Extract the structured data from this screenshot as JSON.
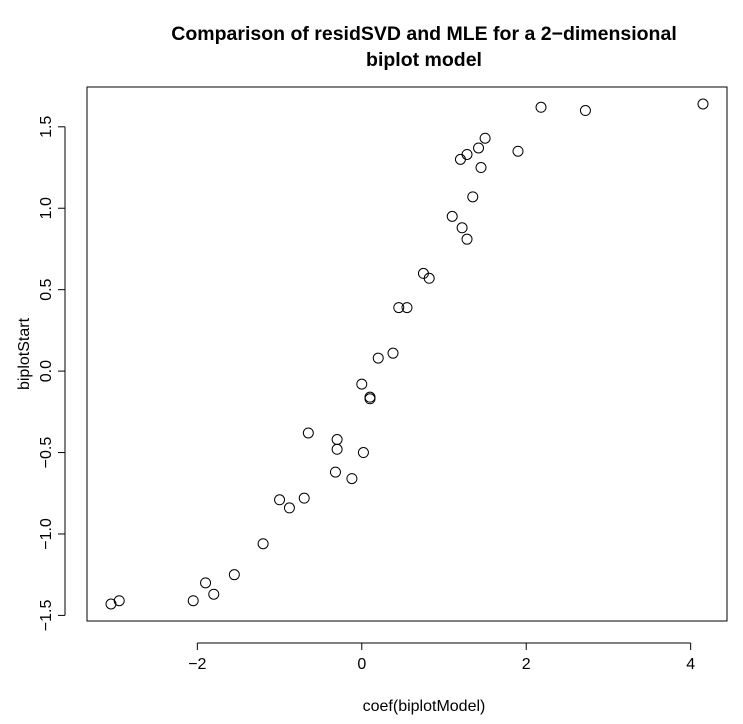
{
  "chart_data": {
    "type": "scatter",
    "title": "Comparison of residSVD and MLE for a 2−dimensional biplot model",
    "title_lines": [
      "Comparison of residSVD and MLE for a 2−dimensional",
      "biplot model"
    ],
    "xlabel": "coef(biplotModel)",
    "ylabel": "biplotStart",
    "xlim": [
      -3.05,
      4.15
    ],
    "ylim": [
      -1.43,
      1.64
    ],
    "x_ticks": [
      -2,
      0,
      2,
      4
    ],
    "x_tick_labels": [
      "−2",
      "0",
      "2",
      "4"
    ],
    "y_ticks": [
      -1.5,
      -1.0,
      -0.5,
      0.0,
      0.5,
      1.0,
      1.5
    ],
    "y_tick_labels": [
      "−1.5",
      "−1.0",
      "−0.5",
      "0.0",
      "0.5",
      "1.0",
      "1.5"
    ],
    "grid": false,
    "legend": "none",
    "series": [
      {
        "marker": "open-circle",
        "color": "#000000",
        "points": [
          [
            -3.05,
            -1.43
          ],
          [
            -2.95,
            -1.41
          ],
          [
            -2.05,
            -1.41
          ],
          [
            -1.9,
            -1.3
          ],
          [
            -1.8,
            -1.37
          ],
          [
            -1.55,
            -1.25
          ],
          [
            -1.2,
            -1.06
          ],
          [
            -1.0,
            -0.79
          ],
          [
            -0.88,
            -0.84
          ],
          [
            -0.7,
            -0.78
          ],
          [
            -0.65,
            -0.38
          ],
          [
            -0.3,
            -0.42
          ],
          [
            -0.3,
            -0.48
          ],
          [
            -0.32,
            -0.62
          ],
          [
            -0.12,
            -0.66
          ],
          [
            0.02,
            -0.5
          ],
          [
            0.0,
            -0.08
          ],
          [
            0.1,
            -0.16
          ],
          [
            0.1,
            -0.17
          ],
          [
            0.2,
            0.08
          ],
          [
            0.38,
            0.11
          ],
          [
            0.45,
            0.39
          ],
          [
            0.55,
            0.39
          ],
          [
            0.75,
            0.6
          ],
          [
            0.82,
            0.57
          ],
          [
            1.1,
            0.95
          ],
          [
            1.22,
            0.88
          ],
          [
            1.28,
            0.81
          ],
          [
            1.35,
            1.07
          ],
          [
            1.2,
            1.3
          ],
          [
            1.28,
            1.33
          ],
          [
            1.42,
            1.37
          ],
          [
            1.45,
            1.25
          ],
          [
            1.5,
            1.43
          ],
          [
            1.9,
            1.35
          ],
          [
            2.18,
            1.62
          ],
          [
            2.72,
            1.6
          ],
          [
            4.15,
            1.64
          ]
        ]
      }
    ]
  }
}
